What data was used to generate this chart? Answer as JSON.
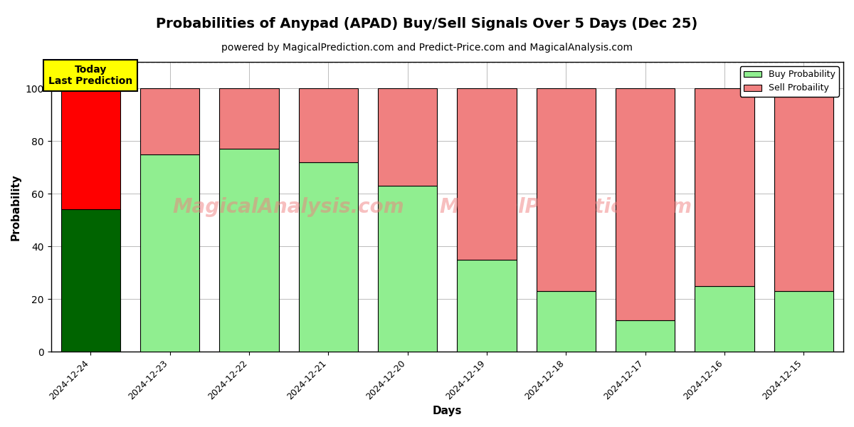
{
  "title": "Probabilities of Anypad (APAD) Buy/Sell Signals Over 5 Days (Dec 25)",
  "subtitle": "powered by MagicalPrediction.com and Predict-Price.com and MagicalAnalysis.com",
  "xlabel": "Days",
  "ylabel": "Probability",
  "categories": [
    "2024-12-24",
    "2024-12-23",
    "2024-12-22",
    "2024-12-21",
    "2024-12-20",
    "2024-12-19",
    "2024-12-18",
    "2024-12-17",
    "2024-12-16",
    "2024-12-15"
  ],
  "buy_values": [
    54,
    75,
    77,
    72,
    63,
    35,
    23,
    12,
    25,
    23
  ],
  "sell_values": [
    46,
    25,
    23,
    28,
    37,
    65,
    77,
    88,
    75,
    77
  ],
  "buy_color_today": "#006400",
  "sell_color_today": "#FF0000",
  "buy_color_others": "#90EE90",
  "sell_color_others": "#F08080",
  "ylim": [
    0,
    110
  ],
  "yticks": [
    0,
    20,
    40,
    60,
    80,
    100
  ],
  "dashed_line_y": 110,
  "watermark_text1": "MagicalAnalysis.com",
  "watermark_text2": "MagicalPrediction.com",
  "legend_buy": "Buy Probability",
  "legend_sell": "Sell Probaility",
  "today_label": "Today\nLast Prediction",
  "background_color": "#ffffff",
  "grid_color": "#bbbbbb",
  "title_fontsize": 14,
  "subtitle_fontsize": 10,
  "bar_edge_color": "#000000",
  "bar_linewidth": 0.8
}
